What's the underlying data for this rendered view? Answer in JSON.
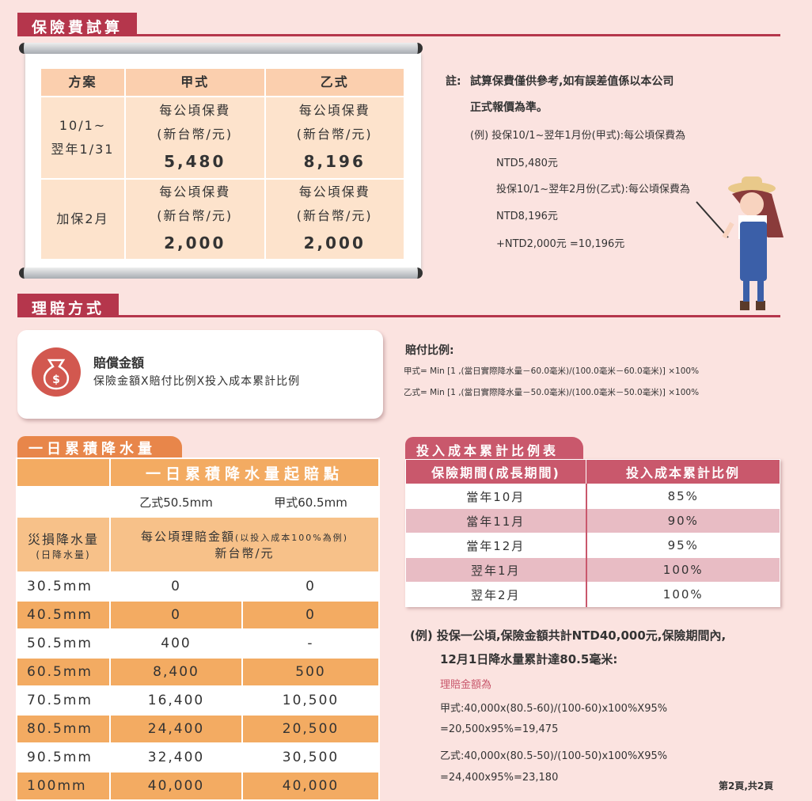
{
  "premium_section": {
    "title": "保險費試算",
    "headers": [
      "方案",
      "甲式",
      "乙式"
    ],
    "rows": [
      {
        "period": [
          "10/1~",
          "翌年1/31"
        ],
        "a": {
          "label1": "每公頃保費",
          "label2": "(新台幣/元)",
          "value": "5,480"
        },
        "b": {
          "label1": "每公頃保費",
          "label2": "(新台幣/元)",
          "value": "8,196"
        }
      },
      {
        "period": [
          "加保2月"
        ],
        "a": {
          "label1": "每公頃保費",
          "label2": "(新台幣/元)",
          "value": "2,000"
        },
        "b": {
          "label1": "每公頃保費",
          "label2": "(新台幣/元)",
          "value": "2,000"
        }
      }
    ]
  },
  "note": {
    "label": "註:",
    "line1": "試算保費僅供參考,如有誤差值係以本公司",
    "line2": "正式報價為準。",
    "ex1": "(例) 投保10/1~翌年1月份(甲式):每公頃保費為",
    "ex1v": "NTD5,480元",
    "ex2": "投保10/1~翌年2月份(乙式):每公頃保費為",
    "ex2v": "NTD8,196元",
    "ex3": "+NTD2,000元 =10,196元"
  },
  "claim_section": {
    "title": "理賠方式",
    "card_title": "賠償金額",
    "card_text": "保險金額X賠付比例X投入成本累計比例",
    "icon": "money-bag-icon"
  },
  "payout": {
    "title": "賠付比例:",
    "a": "甲式= Min [1 ,(當日實際降水量－60.0毫米)/(100.0毫米－60.0毫米)] ×100%",
    "b": "乙式= Min [1 ,(當日實際降水量－50.0毫米)/(100.0毫米－50.0毫米)] ×100%"
  },
  "rain_table": {
    "tab": "一日累積降水量",
    "header": "一日累積降水量起賠點",
    "col_b": "乙式50.5mm",
    "col_a": "甲式60.5mm",
    "row_label1": "災損降水量",
    "row_label2": "(日降水量)",
    "amount_label": "每公頃理賠金額",
    "amount_note": "(以投入成本100%為例)",
    "currency": "新台幣/元",
    "rows": [
      [
        "30.5mm",
        "0",
        "0"
      ],
      [
        "40.5mm",
        "0",
        "0"
      ],
      [
        "50.5mm",
        "400",
        "-"
      ],
      [
        "60.5mm",
        "8,400",
        "500"
      ],
      [
        "70.5mm",
        "16,400",
        "10,500"
      ],
      [
        "80.5mm",
        "24,400",
        "20,500"
      ],
      [
        "90.5mm",
        "32,400",
        "30,500"
      ],
      [
        "100mm",
        "40,000",
        "40,000"
      ]
    ]
  },
  "ratio_table": {
    "tab": "投入成本累計比例表",
    "headers": [
      "保險期間(成長期間)",
      "投入成本累計比例"
    ],
    "rows": [
      [
        "當年10月",
        "85%"
      ],
      [
        "當年11月",
        "90%"
      ],
      [
        "當年12月",
        "95%"
      ],
      [
        "翌年1月",
        "100%"
      ],
      [
        "翌年2月",
        "100%"
      ]
    ]
  },
  "example": {
    "line1": "(例) 投保一公頃,保險金額共計NTD40,000元,保險期間內,",
    "line2": "12月1日降水量累計達80.5毫米:",
    "red": "理賠金額為",
    "a1": "甲式:40,000x(80.5-60)/(100-60)x100%X95%",
    "a2": "=20,500x95%=19,475",
    "b1": "乙式:40,000x(80.5-50)/(100-50)x100%X95%",
    "b2": "=24,400x95%=23,180"
  },
  "page": "第2頁,共2頁",
  "colors": {
    "crimson": "#b5364c",
    "orange": "#f3ab62",
    "pink": "#c9586c",
    "background": "#fbe3e0"
  }
}
